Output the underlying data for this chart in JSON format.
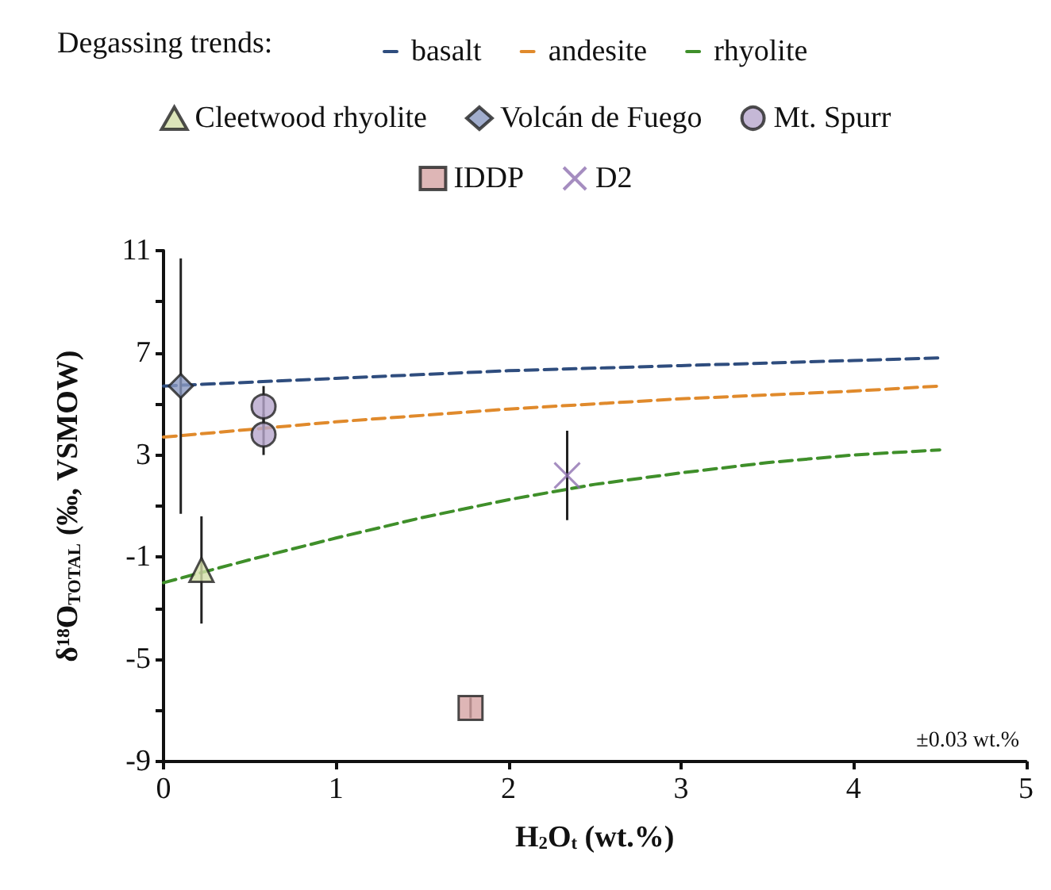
{
  "chart_data": {
    "type": "scatter",
    "xlabel": "H$_{2}$O$_{t}$ (wt.%)",
    "ylabel": "δ¹⁸O$_{TOTAL}$ (‰, VSMOW)",
    "legend_title": "Degassing trends:",
    "legend": "top",
    "grid": false,
    "xlim": [
      0,
      5
    ],
    "xticks": [
      0,
      1,
      2,
      3,
      4,
      5
    ],
    "ylim": [
      -9,
      11
    ],
    "yticks": [
      -9,
      {
        "value": -7,
        "label": null
      },
      -5,
      {
        "value": -3,
        "label": null
      },
      -1,
      {
        "value": 1,
        "label": null
      },
      3,
      {
        "value": 5,
        "label": null
      },
      7,
      {
        "value": 9,
        "label": null
      },
      11
    ],
    "annotations": [
      "±0.03 wt.%"
    ],
    "series": [
      {
        "name": "basalt",
        "type": "line",
        "line_style": "dashed",
        "marker": "none",
        "color": "#2f4d7e",
        "x": [
          0,
          1,
          2,
          3,
          4,
          4.5
        ],
        "values": [
          5.7,
          6.0,
          6.3,
          6.5,
          6.7,
          6.8
        ]
      },
      {
        "name": "andesite",
        "type": "line",
        "line_style": "dashed",
        "marker": "none",
        "color": "#e08a2c",
        "x": [
          0,
          1,
          2,
          3,
          4,
          4.5
        ],
        "values": [
          3.7,
          4.3,
          4.8,
          5.2,
          5.5,
          5.7
        ]
      },
      {
        "name": "rhyolite",
        "type": "line",
        "line_style": "dashed",
        "marker": "none",
        "color": "#3f8f2a",
        "x": [
          0,
          0.5,
          1,
          1.5,
          2,
          2.5,
          3,
          3.5,
          4,
          4.5
        ],
        "values": [
          -2.0,
          -1.1,
          -0.25,
          0.55,
          1.25,
          1.85,
          2.3,
          2.7,
          3.0,
          3.2
        ]
      },
      {
        "name": "Cleetwood rhyolite",
        "marker": "triangle",
        "color": "#d3dfa8",
        "x": [
          0.22
        ],
        "values": [
          -1.5
        ],
        "errors": [
          2.1
        ]
      },
      {
        "name": "Volcán de Fuego",
        "marker": "diamond",
        "color": "#8a99c0",
        "x": [
          0.1
        ],
        "values": [
          5.7
        ],
        "errors": [
          5.0
        ]
      },
      {
        "name": "Mt. Spurr",
        "marker": "circle",
        "color": "#b7a6cc",
        "x": [
          0.58,
          0.58
        ],
        "values": [
          4.9,
          3.8
        ],
        "errors": [
          0.8,
          0.8
        ]
      },
      {
        "name": "IDDP",
        "marker": "square",
        "color": "#d6a4a4",
        "x": [
          1.78
        ],
        "values": [
          -6.9
        ],
        "errors": [
          0.4
        ]
      },
      {
        "name": "D2",
        "marker": "cross",
        "color": "#8e70b0",
        "x": [
          2.34
        ],
        "values": [
          2.2
        ],
        "errors": [
          1.75
        ]
      }
    ]
  }
}
